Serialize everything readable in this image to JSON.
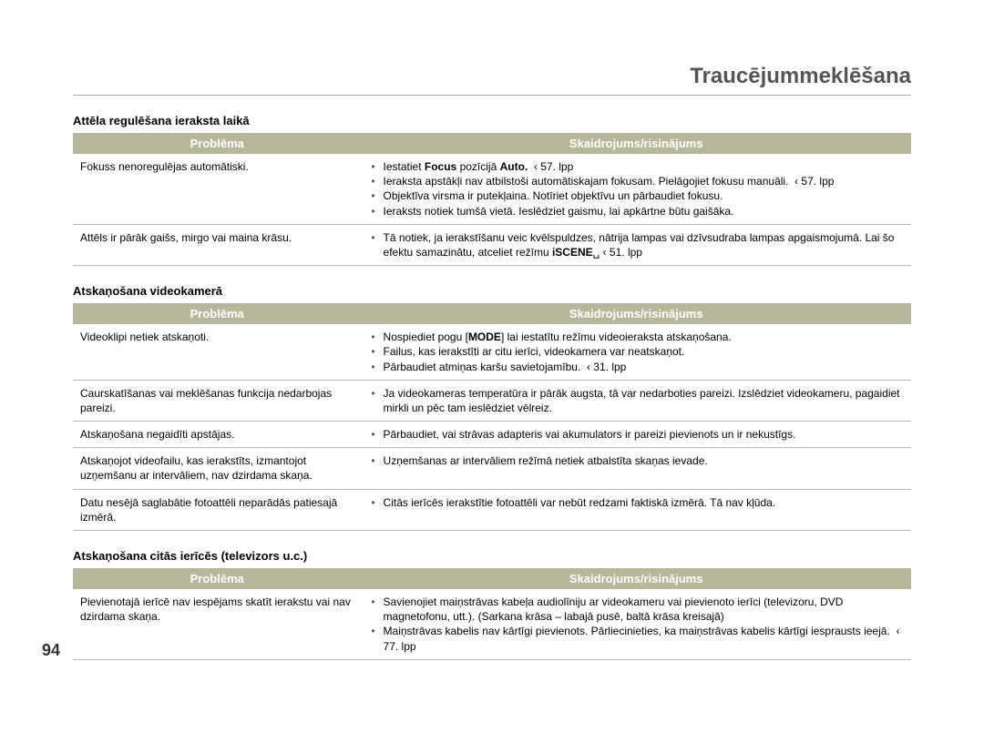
{
  "page": {
    "title": "Traucējummeklēšana",
    "number": "94"
  },
  "columns": {
    "problem": "Problēma",
    "explanation": "Skaidrojums/risinājums"
  },
  "sections": [
    {
      "heading": "Attēla regulēšana ieraksta laikā",
      "rows": [
        {
          "problem": "Fokuss nenoregulējas automātiski.",
          "bullets": [
            "Iestatiet <b>Focus</b> pozīcijā <b>Auto.</b>&nbsp;&nbsp;‹ 57. lpp",
            "Ieraksta apstākļi nav atbilstoši automātiskajam fokusam. Pielāgojiet fokusu manuāli.&nbsp;&nbsp;‹ 57. lpp",
            "Objektīva virsma ir putekļaina. Notīriet objektīvu un pārbaudiet fokusu.",
            "Ieraksts notiek tumšā vietā. Ieslēdziet gaismu, lai apkārtne būtu gaišāka."
          ]
        },
        {
          "problem": "Attēls ir pārāk gaišs, mirgo vai maina krāsu.",
          "bullets": [
            "Tā notiek, ja ierakstīšanu veic kvēlspuldzes, nātrija lampas vai dzīvsudraba lampas apgaismojumā. Lai šo efektu samazinātu, atceliet režīmu <b>iSCENE</b>&#x2423;&nbsp;‹ 51. lpp"
          ]
        }
      ]
    },
    {
      "heading": "Atskaņošana videokamerā",
      "rows": [
        {
          "problem": "Videoklipi netiek atskaņoti.",
          "bullets": [
            "Nospiediet pogu [<b>MODE</b>] lai iestatītu režīmu videoieraksta atskaņošana.",
            "Failus, kas ierakstīti ar citu ierīci, videokamera var neatskaņot.",
            "Pārbaudiet atmiņas karšu savietojamību.&nbsp;&nbsp;‹ 31. lpp"
          ]
        },
        {
          "problem": "Caurskatīšanas vai meklēšanas funkcija nedarbojas pareizi.",
          "bullets": [
            "Ja videokameras temperatūra ir pārāk augsta, tā var nedarboties pareizi. Izslēdziet videokameru, pagaidiet mirkli un pēc tam ieslēdziet vēlreiz."
          ]
        },
        {
          "problem": "Atskaņošana negaidīti apstājas.",
          "bullets": [
            "Pārbaudiet, vai strāvas adapteris vai akumulators ir pareizi pievienots un ir nekustīgs."
          ]
        },
        {
          "problem": "Atskaņojot videofailu, kas ierakstīts, izmantojot uzņemšanu ar intervāliem, nav dzirdama skaņa.",
          "bullets": [
            "Uzņemšanas ar intervāliem režīmā netiek atbalstīta skaņas ievade."
          ]
        },
        {
          "problem": "Datu nesējā saglabātie fotoattēli neparādās patiesajā izmērā.",
          "bullets": [
            "Citās ierīcēs ierakstītie fotoattēli var nebūt redzami faktiskā izmērā. Tā nav kļūda."
          ]
        }
      ]
    },
    {
      "heading": "Atskaņošana citās ierīcēs (televizors u.c.)",
      "rows": [
        {
          "problem": "Pievienotajā ierīcē nav iespējams skatīt ierakstu vai nav dzirdama skaņa.",
          "bullets": [
            "Savienojiet maiņstrāvas kabeļa audiolīniju ar videokameru vai pievienoto ierīci (televizoru, DVD magnetofonu, utt.). (Sarkana krāsa – labajā pusē, baltā krāsa kreisajā)",
            "Maiņstrāvas kabelis nav kārtīgi pievienots. Pārliecinieties, ka maiņstrāvas kabelis kārtīgi iesprausts ieejā.&nbsp;&nbsp;‹ 77. lpp"
          ]
        }
      ]
    }
  ],
  "style": {
    "header_bg": "#b7b79b",
    "header_fg": "#ffffff",
    "title_color": "#555555",
    "rule_color": "#aaaaaa",
    "row_border": "#bbbbbb"
  }
}
